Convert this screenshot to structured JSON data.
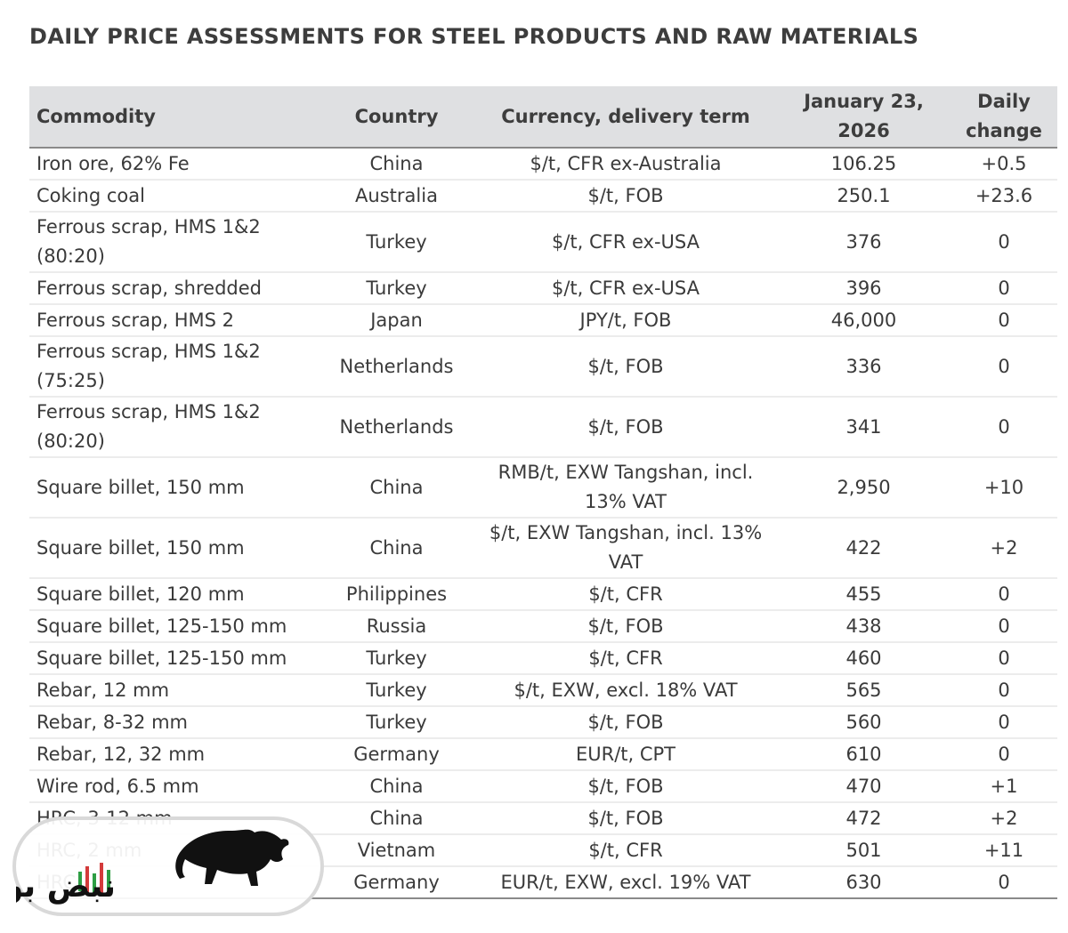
{
  "title": "DAILY PRICE ASSESSMENTS FOR STEEL PRODUCTS AND RAW MATERIALS",
  "table": {
    "headers": {
      "commodity": "Commodity",
      "country": "Country",
      "currency": "Currency, delivery term",
      "date_line1": "January 23,",
      "date_line2": "2026",
      "change_line1": "Daily",
      "change_line2": "change"
    },
    "rows": [
      {
        "commodity": "Iron ore, 62% Fe",
        "country": "China",
        "term": "$/t, CFR ex-Australia",
        "price": "106.25",
        "change": "+0.5"
      },
      {
        "commodity": "Coking coal",
        "country": "Australia",
        "term": "$/t, FOB",
        "price": "250.1",
        "change": "+23.6"
      },
      {
        "commodity": "Ferrous scrap, HMS 1&2 (80:20)",
        "country": "Turkey",
        "term": "$/t, CFR ex-USA",
        "price": "376",
        "change": "0"
      },
      {
        "commodity": "Ferrous scrap, shredded",
        "country": "Turkey",
        "term": "$/t, CFR ex-USA",
        "price": "396",
        "change": "0"
      },
      {
        "commodity": "Ferrous scrap, HMS 2",
        "country": "Japan",
        "term": "JPY/t, FOB",
        "price": "46,000",
        "change": "0"
      },
      {
        "commodity": "Ferrous scrap, HMS 1&2 (75:25)",
        "country": "Netherlands",
        "term": "$/t, FOB",
        "price": "336",
        "change": "0"
      },
      {
        "commodity": "Ferrous scrap, HMS 1&2 (80:20)",
        "country": "Netherlands",
        "term": "$/t, FOB",
        "price": "341",
        "change": "0"
      },
      {
        "commodity": "Square billet, 150 mm",
        "country": "China",
        "term": "RMB/t, EXW Tangshan, incl. 13% VAT",
        "price": "2,950",
        "change": "+10"
      },
      {
        "commodity": "Square billet, 150 mm",
        "country": "China",
        "term": "$/t, EXW Tangshan, incl. 13% VAT",
        "price": "422",
        "change": "+2"
      },
      {
        "commodity": "Square billet, 120 mm",
        "country": "Philippines",
        "term": "$/t, CFR",
        "price": "455",
        "change": "0"
      },
      {
        "commodity": "Square billet, 125-150 mm",
        "country": "Russia",
        "term": "$/t, FOB",
        "price": "438",
        "change": "0"
      },
      {
        "commodity": "Square billet, 125-150 mm",
        "country": "Turkey",
        "term": "$/t, CFR",
        "price": "460",
        "change": "0"
      },
      {
        "commodity": "Rebar, 12 mm",
        "country": "Turkey",
        "term": "$/t, EXW, excl. 18% VAT",
        "price": "565",
        "change": "0"
      },
      {
        "commodity": "Rebar, 8-32 mm",
        "country": "Turkey",
        "term": "$/t, FOB",
        "price": "560",
        "change": "0"
      },
      {
        "commodity": "Rebar, 12, 32 mm",
        "country": "Germany",
        "term": "EUR/t, CPT",
        "price": "610",
        "change": "0"
      },
      {
        "commodity": "Wire rod, 6.5 mm",
        "country": "China",
        "term": "$/t, FOB",
        "price": "470",
        "change": "+1"
      },
      {
        "commodity": "HRC, 3-12 mm",
        "country": "China",
        "term": "$/t, FOB",
        "price": "472",
        "change": "+2"
      },
      {
        "commodity": "HRC, 2 mm",
        "country": "Vietnam",
        "term": "$/t, CFR",
        "price": "501",
        "change": "+11"
      },
      {
        "commodity": "HRC",
        "country": "Germany",
        "term": "EUR/t, EXW, excl. 19% VAT",
        "price": "630",
        "change": "0"
      }
    ]
  },
  "logo": {
    "text": "نبض بورس",
    "colors": {
      "bull": "#111111",
      "up_bar": "#2e9e44",
      "down_bar": "#d33b3b",
      "text": "#111111"
    }
  }
}
